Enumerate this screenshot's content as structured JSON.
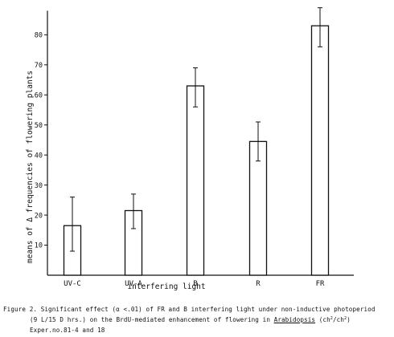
{
  "chart_data": {
    "type": "bar",
    "categories": [
      "UV-C",
      "UV-A",
      "B",
      "R",
      "FR"
    ],
    "values": [
      16.5,
      21.5,
      63,
      44.5,
      83
    ],
    "error_low": [
      8,
      15.5,
      56,
      38,
      76
    ],
    "error_high": [
      26,
      27,
      69,
      51,
      89
    ],
    "xlabel": "interfering light",
    "ylabel": "means of Δ frequencies of flowering plants",
    "ylim": [
      0,
      88
    ],
    "yticks": [
      10,
      20,
      30,
      40,
      50,
      60,
      70,
      80
    ],
    "grid": false,
    "legend": "none",
    "caption": {
      "line1": "Figure 2. Significant effect (α <.01) of FR and B interfering light under non-inductive photoperiod",
      "line2_pre": "(9 L/15 D hrs.) on the BrdU-mediated enhancement of flowering in ",
      "line2_species": "Arabidopsis",
      "line2_open": " (ch",
      "line2_sup1": "2",
      "line2_slash": "/ch",
      "line2_sup2": "2",
      "line2_close": ")",
      "line3": "Exper.no.81-4 and 18"
    }
  },
  "colors": {
    "ink": "#111111",
    "bar_fill": "#ffffff"
  }
}
